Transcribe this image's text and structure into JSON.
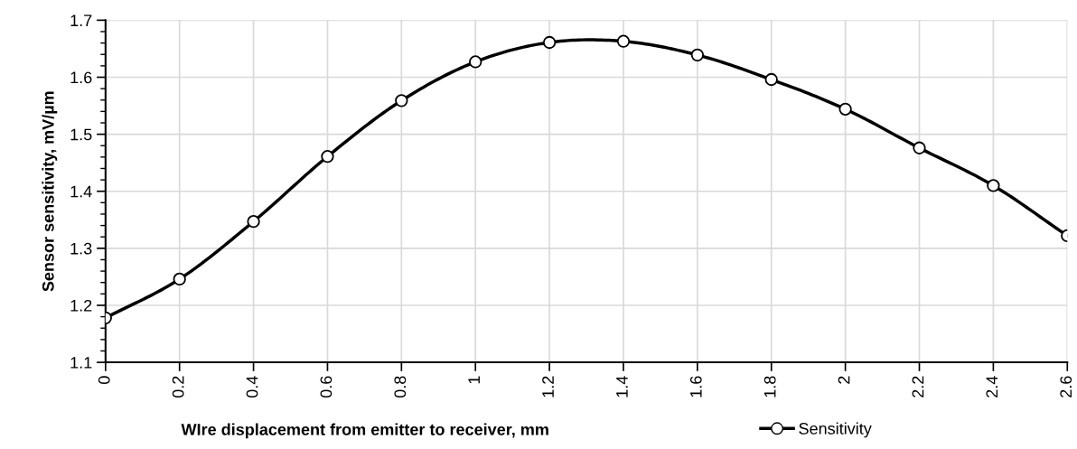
{
  "chart_data": {
    "type": "line",
    "xlabel": "WIre displacement from emitter to receiver, mm",
    "ylabel": "Sensor sensitivity, mV/µm",
    "x": [
      0,
      0.2,
      0.4,
      0.6,
      0.8,
      1,
      1.2,
      1.4,
      1.6,
      1.8,
      2,
      2.2,
      2.4,
      2.6
    ],
    "series": [
      {
        "name": "Sensitivity",
        "color": "#000000",
        "values": [
          1.178,
          1.246,
          1.347,
          1.461,
          1.559,
          1.627,
          1.661,
          1.663,
          1.639,
          1.596,
          1.544,
          1.476,
          1.41,
          1.322
        ]
      }
    ],
    "xlim": [
      0,
      2.6
    ],
    "xticks": [
      0,
      0.2,
      0.4,
      0.6,
      0.8,
      1,
      1.2,
      1.4,
      1.6,
      1.8,
      2,
      2.2,
      2.4,
      2.6
    ],
    "ylim": [
      1.1,
      1.7
    ],
    "yticks": [
      1.1,
      1.2,
      1.3,
      1.4,
      1.5,
      1.6,
      1.7
    ],
    "grid": true,
    "legend": "bottom right",
    "marker": "circle",
    "line_style": "solid"
  }
}
